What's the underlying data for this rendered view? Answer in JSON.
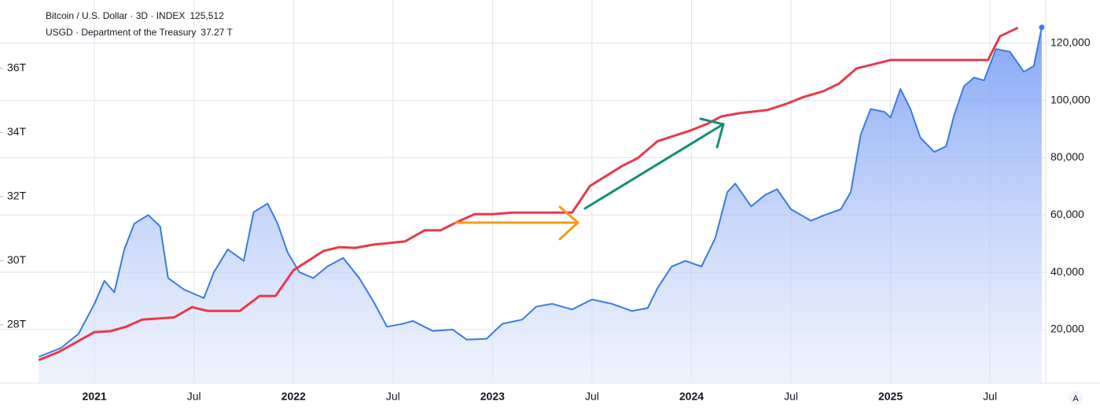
{
  "chart_data": {
    "type": "line",
    "xlim": [
      2020.715,
      2025.78
    ],
    "xticks": [
      2021,
      {
        "value": 2021.5,
        "label": "Jul"
      },
      2022,
      {
        "value": 2022.5,
        "label": "Jul"
      },
      2023,
      {
        "value": 2023.5,
        "label": "Jul"
      },
      2024,
      {
        "value": 2024.5,
        "label": "Jul"
      },
      2025,
      {
        "value": 2025.5,
        "label": "Jul"
      }
    ],
    "ylim": [
      26.18,
      38.01
    ],
    "yticks": [
      {
        "value": 28,
        "label": "28T"
      },
      {
        "value": 30,
        "label": "30T"
      },
      {
        "value": 32,
        "label": "32T"
      },
      {
        "value": 34,
        "label": "34T"
      },
      {
        "value": 36,
        "label": "36T"
      }
    ],
    "y2lim": [
      1300,
      133700
    ],
    "y2ticks": [
      {
        "value": 20000,
        "label": "20,000"
      },
      {
        "value": 40000,
        "label": "40,000"
      },
      {
        "value": 60000,
        "label": "60,000"
      },
      {
        "value": 80000,
        "label": "80,000"
      },
      {
        "value": 100000,
        "label": "100,000"
      },
      {
        "value": 120000,
        "label": "120,000"
      }
    ],
    "grid": true,
    "series": [
      {
        "name": "Bitcoin / U.S. Dollar · 3D · INDEX",
        "last_label": "125,512",
        "color": "#3a7be0",
        "axis": "y2",
        "area": true,
        "x": [
          2020.72,
          2020.83,
          2020.92,
          2021.0,
          2021.05,
          2021.1,
          2021.15,
          2021.2,
          2021.27,
          2021.33,
          2021.37,
          2021.45,
          2021.55,
          2021.6,
          2021.67,
          2021.75,
          2021.8,
          2021.87,
          2021.92,
          2021.97,
          2022.03,
          2022.1,
          2022.17,
          2022.25,
          2022.33,
          2022.4,
          2022.47,
          2022.55,
          2022.6,
          2022.7,
          2022.8,
          2022.87,
          2022.97,
          2023.05,
          2023.15,
          2023.22,
          2023.3,
          2023.4,
          2023.5,
          2023.6,
          2023.7,
          2023.78,
          2023.83,
          2023.9,
          2023.97,
          2024.05,
          2024.12,
          2024.18,
          2024.22,
          2024.3,
          2024.37,
          2024.43,
          2024.5,
          2024.6,
          2024.67,
          2024.75,
          2024.8,
          2024.85,
          2024.9,
          2024.97,
          2025.0,
          2025.05,
          2025.1,
          2025.15,
          2025.22,
          2025.28,
          2025.32,
          2025.37,
          2025.42,
          2025.47,
          2025.53,
          2025.6,
          2025.67,
          2025.72,
          2025.76
        ],
        "values": [
          10500,
          13500,
          18500,
          29000,
          37000,
          33000,
          48000,
          57000,
          60000,
          56000,
          38000,
          34000,
          31000,
          40000,
          48000,
          44000,
          61000,
          64000,
          57000,
          47000,
          40000,
          38000,
          42000,
          45000,
          38000,
          30000,
          21000,
          22000,
          23000,
          19500,
          20000,
          16500,
          16800,
          22000,
          23500,
          28000,
          29000,
          27000,
          30500,
          29000,
          26500,
          27500,
          34500,
          42000,
          44000,
          42000,
          52000,
          68000,
          71000,
          63000,
          67000,
          69000,
          62000,
          58000,
          60000,
          62000,
          68000,
          88000,
          97000,
          96000,
          94000,
          104000,
          97000,
          87000,
          82000,
          84000,
          95000,
          105000,
          108000,
          107000,
          118000,
          117000,
          110000,
          112000,
          125512
        ]
      },
      {
        "name": "USGD · Department of the Treasury",
        "last_label": "37.27 T",
        "color": "#e8394a",
        "axis": "y",
        "x": [
          2020.72,
          2020.82,
          2021.0,
          2021.08,
          2021.16,
          2021.24,
          2021.4,
          2021.49,
          2021.57,
          2021.73,
          2021.83,
          2021.91,
          2022.0,
          2022.15,
          2022.23,
          2022.31,
          2022.4,
          2022.56,
          2022.66,
          2022.74,
          2022.82,
          2022.91,
          2023.0,
          2023.1,
          2023.4,
          2023.49,
          2023.65,
          2023.73,
          2023.83,
          2023.99,
          2024.08,
          2024.15,
          2024.24,
          2024.38,
          2024.48,
          2024.56,
          2024.66,
          2024.74,
          2024.83,
          2025.0,
          2025.49,
          2025.55,
          2025.64
        ],
        "values": [
          26.9,
          27.15,
          27.77,
          27.8,
          27.94,
          28.16,
          28.23,
          28.55,
          28.43,
          28.43,
          28.9,
          28.9,
          29.7,
          30.3,
          30.42,
          30.4,
          30.5,
          30.6,
          30.95,
          30.95,
          31.2,
          31.45,
          31.45,
          31.5,
          31.5,
          32.33,
          32.95,
          33.2,
          33.73,
          34.05,
          34.27,
          34.5,
          34.6,
          34.7,
          34.9,
          35.1,
          35.28,
          35.52,
          36.0,
          36.26,
          36.26,
          37.0,
          37.27
        ]
      }
    ]
  }
}
